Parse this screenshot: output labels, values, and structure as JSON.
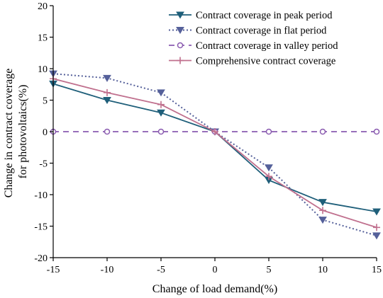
{
  "chart_data": {
    "type": "line",
    "xlabel": "Change of load demand(%)",
    "ylabel_lines": [
      "Change in contract coverage",
      "for photovoltaics(%)"
    ],
    "x": [
      -15,
      -10,
      -5,
      0,
      5,
      10,
      15
    ],
    "xlim": [
      -15,
      15
    ],
    "ylim": [
      -20,
      20
    ],
    "xticks": [
      -15,
      -10,
      -5,
      0,
      5,
      10,
      15
    ],
    "yticks": [
      -20,
      -15,
      -10,
      -5,
      0,
      5,
      10,
      15,
      20
    ],
    "xtick_labels": [
      "-15",
      "-10",
      "-5",
      "0",
      "5",
      "10",
      "15"
    ],
    "ytick_labels": [
      "-20",
      "-15",
      "-10",
      "-5",
      "0",
      "5",
      "10",
      "15",
      "20"
    ],
    "grid": false,
    "legend_position": "top-right",
    "series": [
      {
        "name": "Contract coverage in peak period",
        "values": [
          7.6,
          5.0,
          3.0,
          0,
          -7.7,
          -11.2,
          -12.7
        ],
        "color": "#1f5f7a",
        "line_style": "solid",
        "marker": "triangle-down-filled"
      },
      {
        "name": "Contract coverage in flat period",
        "values": [
          9.2,
          8.5,
          6.2,
          0,
          -5.7,
          -14.0,
          -16.5
        ],
        "color": "#55609a",
        "line_style": "dotted",
        "marker": "triangle-down-filled"
      },
      {
        "name": "Contract coverage in valley period",
        "values": [
          0,
          0,
          0,
          0,
          0,
          0,
          0
        ],
        "color": "#8a5bb0",
        "line_style": "dashed",
        "marker": "circle-open"
      },
      {
        "name": "Comprehensive contract coverage",
        "values": [
          8.4,
          6.2,
          4.3,
          0,
          -7.1,
          -12.5,
          -15.2
        ],
        "color": "#c0708e",
        "line_style": "solid",
        "marker": "plus"
      }
    ]
  }
}
